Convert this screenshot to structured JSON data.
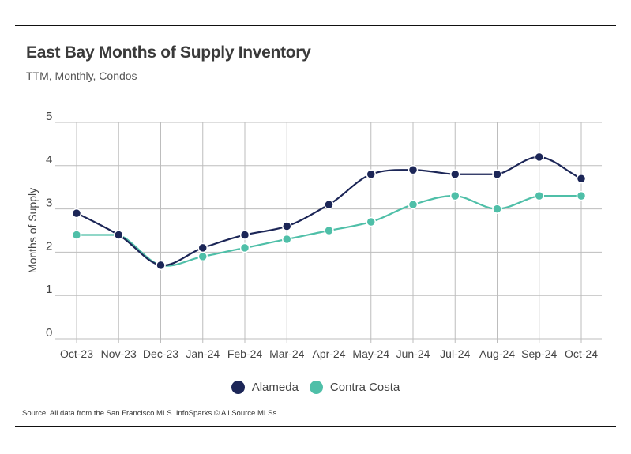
{
  "header": {
    "title": "East Bay Months of Supply Inventory",
    "subtitle": "TTM, Monthly, Condos"
  },
  "footer": {
    "source": "Source:  All data from the San Francisco MLS. InfoSparks © All Source MLSs"
  },
  "chart_data": {
    "type": "line",
    "title": "East Bay Months of Supply Inventory",
    "subtitle": "TTM, Monthly, Condos",
    "xlabel": "",
    "ylabel": "Months of Supply",
    "ylim": [
      0,
      5
    ],
    "yticks": [
      0,
      1,
      2,
      3,
      4,
      5
    ],
    "grid": true,
    "legend_position": "bottom-center",
    "categories": [
      "Oct-23",
      "Nov-23",
      "Dec-23",
      "Jan-24",
      "Feb-24",
      "Mar-24",
      "Apr-24",
      "May-24",
      "Jun-24",
      "Jul-24",
      "Aug-24",
      "Sep-24",
      "Oct-24"
    ],
    "series": [
      {
        "name": "Alameda",
        "color": "#1c2657",
        "values": [
          2.9,
          2.4,
          1.7,
          2.1,
          2.4,
          2.6,
          3.1,
          3.8,
          3.9,
          3.8,
          3.8,
          4.2,
          3.7
        ]
      },
      {
        "name": "Contra Costa",
        "color": "#4fbfa8",
        "values": [
          2.4,
          2.4,
          1.7,
          1.9,
          2.1,
          2.3,
          2.5,
          2.7,
          3.1,
          3.3,
          3.0,
          3.3,
          3.3
        ]
      }
    ]
  }
}
